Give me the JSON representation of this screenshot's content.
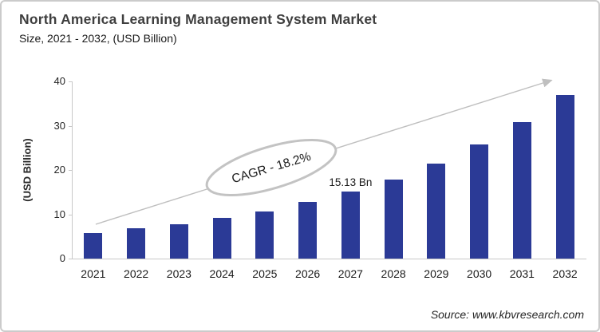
{
  "header": {
    "title": "North America Learning Management System Market",
    "subtitle": "Size, 2021 - 2032, (USD Billion)"
  },
  "chart_data": {
    "type": "bar",
    "title": "North America Learning Management System Market Size, 2021 - 2032, (USD Billion)",
    "categories": [
      "2021",
      "2022",
      "2023",
      "2024",
      "2025",
      "2026",
      "2027",
      "2028",
      "2029",
      "2030",
      "2031",
      "2032"
    ],
    "values": [
      5.8,
      6.8,
      7.8,
      9.1,
      10.6,
      12.8,
      15.13,
      17.9,
      21.4,
      25.8,
      30.9,
      37.0
    ],
    "xlabel": "",
    "ylabel": "(USD Billion)",
    "ylim": [
      0,
      40
    ],
    "yticks": [
      0,
      10,
      20,
      30,
      40
    ],
    "grid": false,
    "legend": "none",
    "bar_color": "#2b3a96",
    "annotations": {
      "cagr_label": "CAGR - 18.2%",
      "value_label": "15.13 Bn",
      "value_label_year": "2027",
      "trend_arrow": "up-right"
    }
  },
  "footer": {
    "source": "Source: www.kbvresearch.com"
  },
  "colors": {
    "bar": "#2b3a96",
    "axis": "#c8c8c8",
    "arrow": "#bfbfbf",
    "ellipse_stroke": "#c3c3c3",
    "title_text": "#3f3f3f",
    "border": "#cbcbcb"
  }
}
